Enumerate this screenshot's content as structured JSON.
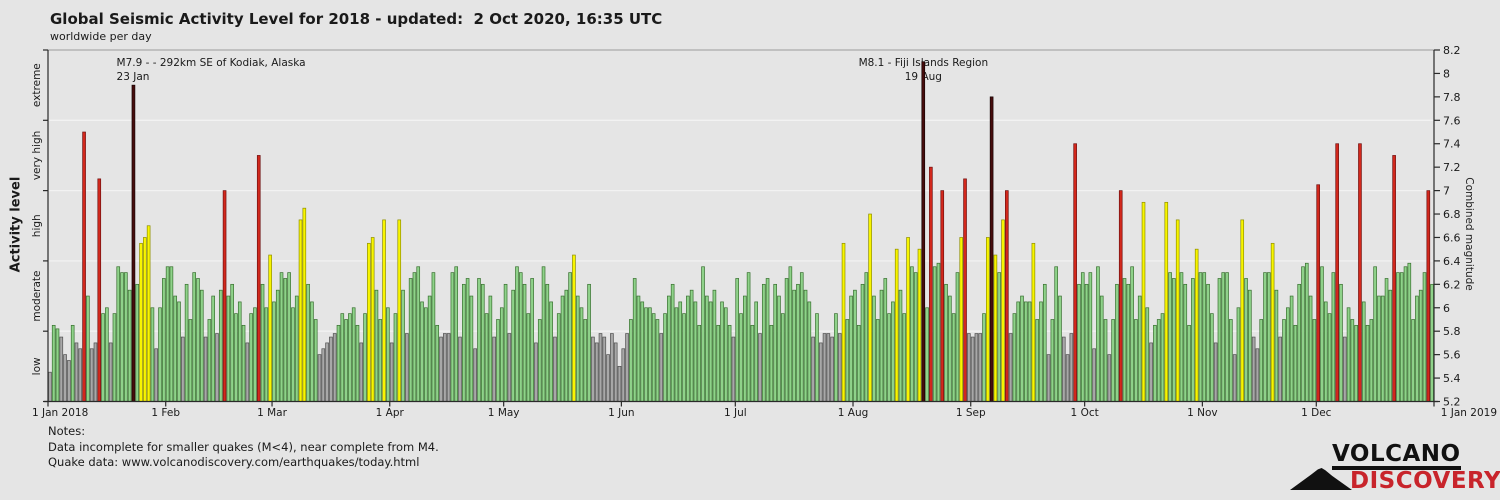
{
  "title": "Global Seismic Activity Level for 2018 - updated:  2 Oct 2020, 16:35 UTC",
  "subtitle": "worldwide per day",
  "y_left": {
    "label": "Activity level",
    "categories": [
      "low",
      "moderate",
      "high",
      "very high",
      "extreme"
    ]
  },
  "y_right": {
    "label": "Combined magnitude",
    "min": 5.2,
    "max": 8.2,
    "step": 0.2
  },
  "annotations": [
    {
      "line1": "M7.9 - - 292km SE of Kodiak, Alaska",
      "line2": "23 Jan",
      "day": 22
    },
    {
      "line1": "M8.1 - Fiji Islands Region",
      "line2": "19 Aug",
      "day": 230
    }
  ],
  "notes": {
    "heading": "Notes:",
    "line1": "Data incomplete for smaller quakes (M<4), near complete from M4.",
    "line2": "Quake data: www.volcanodiscovery.com/earthquakes/today.html"
  },
  "logo": {
    "line1": "VOLCANO",
    "line2": "DISCOVERY"
  },
  "chart_data": {
    "type": "bar",
    "title": "Global Seismic Activity Level for 2018",
    "xlabel": "",
    "ylabel": "Combined magnitude",
    "ylim": [
      5.2,
      8.2
    ],
    "grid": "horizontal at activity-level boundaries",
    "legend_position": "none",
    "x_tick_labels": [
      "1 Jan 2018",
      "1 Feb",
      "1 Mar",
      "1 Apr",
      "1 May",
      "1 Jun",
      "1 Jul",
      "1 Aug",
      "1 Sep",
      "1 Oct",
      "1 Nov",
      "1 Dec",
      "1 Jan 2019"
    ],
    "month_tick_days": [
      0,
      31,
      59,
      90,
      120,
      151,
      181,
      212,
      243,
      273,
      304,
      334,
      365
    ],
    "level_boundaries": [
      5.8,
      6.4,
      7.0,
      7.6
    ],
    "levels": {
      "low": "<5.8",
      "moderate": "5.8-6.4",
      "high": "6.4-7.0",
      "very_high": "7.0-7.6",
      "extreme": ">=7.6"
    },
    "colors": {
      "low": "#a8a8a8",
      "moderate": "#8fd28a",
      "high": "#f8f500",
      "very_high": "#d3281c",
      "extreme": "#470c0c"
    },
    "values": [
      5.45,
      5.85,
      5.82,
      5.75,
      5.6,
      5.55,
      5.85,
      5.7,
      5.65,
      7.5,
      6.1,
      5.65,
      5.7,
      7.1,
      5.95,
      6.0,
      5.7,
      5.95,
      6.35,
      6.3,
      6.3,
      6.15,
      7.9,
      6.2,
      6.55,
      6.6,
      6.7,
      6.0,
      5.65,
      6.0,
      6.25,
      6.35,
      6.35,
      6.1,
      6.05,
      5.75,
      6.2,
      5.9,
      6.3,
      6.25,
      6.15,
      5.75,
      5.9,
      6.1,
      5.78,
      6.15,
      7.0,
      6.1,
      6.2,
      5.95,
      6.05,
      5.85,
      5.7,
      5.95,
      6.0,
      7.3,
      6.2,
      6.0,
      6.45,
      6.05,
      6.15,
      6.3,
      6.25,
      6.3,
      6.0,
      6.1,
      6.75,
      6.85,
      6.2,
      6.05,
      5.9,
      5.6,
      5.65,
      5.7,
      5.75,
      5.78,
      5.85,
      5.95,
      5.9,
      5.95,
      6.0,
      5.85,
      5.7,
      5.95,
      6.55,
      6.6,
      6.15,
      5.9,
      6.75,
      6.0,
      5.7,
      5.95,
      6.75,
      6.15,
      5.78,
      6.25,
      6.3,
      6.35,
      6.05,
      6.0,
      6.1,
      6.3,
      5.85,
      5.75,
      5.78,
      5.78,
      6.3,
      6.35,
      5.75,
      6.2,
      6.25,
      6.1,
      5.65,
      6.25,
      6.2,
      5.95,
      6.1,
      5.75,
      5.9,
      6.0,
      6.2,
      5.78,
      6.15,
      6.35,
      6.3,
      6.2,
      5.95,
      6.25,
      5.7,
      5.9,
      6.35,
      6.2,
      6.05,
      5.75,
      5.95,
      6.1,
      6.15,
      6.3,
      6.45,
      6.1,
      6.0,
      5.9,
      6.2,
      5.75,
      5.7,
      5.78,
      5.75,
      5.6,
      5.78,
      5.7,
      5.5,
      5.65,
      5.78,
      5.9,
      6.25,
      6.1,
      6.05,
      6.0,
      6.0,
      5.95,
      5.9,
      5.78,
      5.95,
      6.1,
      6.2,
      6.0,
      6.05,
      5.95,
      6.1,
      6.15,
      6.05,
      5.85,
      6.35,
      6.1,
      6.05,
      6.15,
      5.85,
      6.05,
      6.0,
      5.85,
      5.75,
      6.25,
      5.95,
      6.1,
      6.3,
      5.85,
      6.05,
      5.78,
      6.2,
      6.25,
      5.85,
      6.2,
      6.1,
      5.95,
      6.25,
      6.35,
      6.15,
      6.2,
      6.3,
      6.15,
      6.05,
      5.75,
      5.95,
      5.7,
      5.78,
      5.78,
      5.75,
      5.95,
      5.78,
      6.55,
      5.9,
      6.1,
      6.15,
      5.85,
      6.2,
      6.3,
      6.8,
      6.1,
      5.9,
      6.15,
      6.25,
      5.95,
      6.05,
      6.5,
      6.15,
      5.95,
      6.6,
      6.35,
      6.3,
      6.5,
      8.1,
      6.0,
      7.2,
      6.35,
      6.38,
      7.0,
      6.2,
      6.1,
      5.95,
      6.3,
      6.6,
      7.1,
      5.78,
      5.75,
      5.78,
      5.78,
      5.95,
      6.6,
      7.8,
      6.45,
      6.3,
      6.75,
      7.0,
      5.78,
      5.95,
      6.05,
      6.1,
      6.05,
      6.05,
      6.55,
      5.9,
      6.05,
      6.2,
      5.6,
      5.9,
      6.35,
      6.1,
      5.75,
      5.6,
      5.78,
      7.4,
      6.2,
      6.3,
      6.2,
      6.3,
      5.65,
      6.35,
      6.1,
      5.9,
      5.6,
      5.9,
      6.2,
      7.0,
      6.25,
      6.2,
      6.35,
      5.9,
      6.1,
      6.9,
      6.0,
      5.7,
      5.85,
      5.9,
      5.95,
      6.9,
      6.3,
      6.25,
      6.75,
      6.3,
      6.2,
      5.85,
      6.25,
      6.5,
      6.3,
      6.3,
      6.2,
      5.95,
      5.7,
      6.25,
      6.3,
      6.3,
      5.9,
      5.6,
      6.0,
      6.75,
      6.25,
      6.15,
      5.75,
      5.65,
      5.9,
      6.3,
      6.3,
      6.55,
      6.15,
      5.75,
      5.9,
      6.0,
      6.1,
      5.85,
      6.2,
      6.35,
      6.38,
      6.1,
      5.9,
      7.05,
      6.35,
      6.05,
      5.95,
      6.3,
      7.4,
      6.2,
      5.75,
      6.0,
      5.9,
      5.85,
      7.4,
      6.05,
      5.85,
      5.9,
      6.35,
      6.1,
      6.1,
      6.25,
      6.15,
      7.3,
      6.3,
      6.3,
      6.35,
      6.38,
      5.9,
      6.1,
      6.15,
      6.3,
      7.0,
      6.2
    ]
  }
}
